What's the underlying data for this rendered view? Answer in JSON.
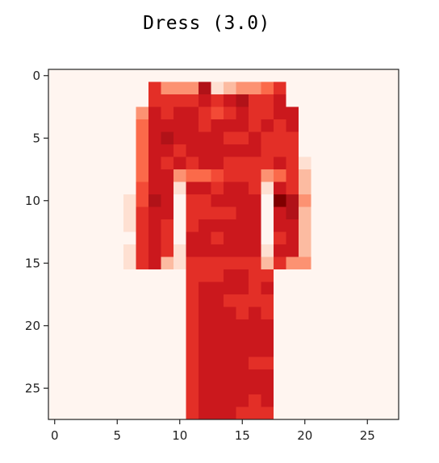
{
  "chart_data": {
    "type": "heatmap",
    "title": "Dress (3.0)",
    "colormap": "Reds",
    "x_ticks": [
      0,
      5,
      10,
      15,
      20,
      25
    ],
    "y_ticks": [
      0,
      5,
      10,
      15,
      20,
      25
    ],
    "xlim": [
      -0.5,
      27.5
    ],
    "ylim": [
      27.5,
      -0.5
    ],
    "grid": false,
    "rows": [
      "0000000000000000000000000000",
      "0000000063338123346000000000",
      "0000000066667678667000000000",
      "0000000376776567667700000000",
      "0000000477776777676700000000",
      "0000000478777766766600000000",
      "0000000477677777766600000000",
      "0000000476767766667610000000",
      "0000000477344566634620000000",
      "0000000577177677617620000000",
      "0000001587066777709830000000",
      "0000001677066667707820000000",
      "0000001676067777707720000000",
      "0000000676077677706720000000",
      "0000001676177777717720000000",
      "0000001672166666626330000000",
      "0000000000066677660000000000",
      "0000000000067777670000000000",
      "0000000000067766660000000000",
      "0000000000067776760000000000",
      "0000000000067777770000000000",
      "0000000000067777770000000000",
      "0000000000067777770000000000",
      "0000000000067777660000000000",
      "0000000000067777770000000000",
      "0000000000067777770000000000",
      "0000000000067777670000000000",
      "0000000000067776660000000000"
    ]
  }
}
